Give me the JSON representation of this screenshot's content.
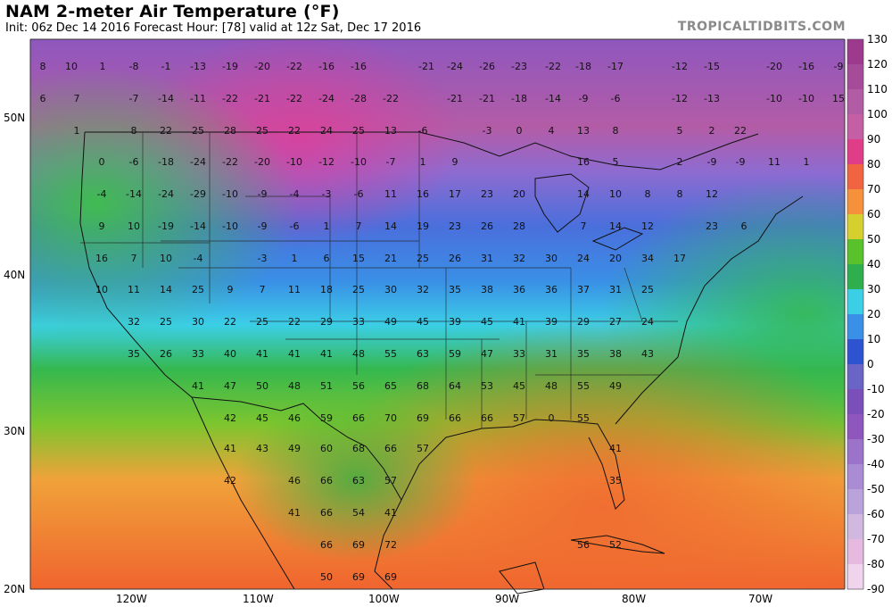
{
  "header": {
    "title": "NAM 2-meter Air Temperature (°F)",
    "subtitle": "Init: 06z Dec 14 2016   Forecast Hour: [78]   valid at 12z Sat, Dec 17 2016",
    "brand": "TROPICALTIDBITS.COM"
  },
  "map": {
    "lat_labels": [
      "50N",
      "40N",
      "30N",
      "20N"
    ],
    "lon_labels": [
      "120W",
      "110W",
      "100W",
      "90W",
      "80W",
      "70W"
    ]
  },
  "colorbar": {
    "unit": "°F",
    "ticks": [
      "130",
      "120",
      "110",
      "100",
      "90",
      "80",
      "70",
      "60",
      "50",
      "40",
      "30",
      "20",
      "10",
      "0",
      "-10",
      "-20",
      "-30",
      "-40",
      "-50",
      "-60",
      "-70",
      "-80",
      "-90"
    ],
    "colors": {
      "130": "#9e3a8e",
      "120": "#a64a9a",
      "110": "#b35ca6",
      "100": "#c45fa6",
      "90": "#e03c88",
      "80": "#f06442",
      "70": "#f5913a",
      "60": "#d6d02f",
      "50": "#58c12c",
      "40": "#2fae4e",
      "30": "#3bcfe6",
      "20": "#3a8fe6",
      "10": "#2e53d1",
      "0": "#6b64c7",
      "-10": "#7a4fb9",
      "-20": "#8f57be",
      "-30": "#9b74c9",
      "-40": "#a98cd3",
      "-50": "#b9a3da",
      "-60": "#d0b8df",
      "-70": "#e5b9e0",
      "-80": "#f0d4ee",
      "-90": "#fbeefa"
    }
  },
  "temperature_labels": [
    {
      "t": "8"
    },
    {
      "t": "10"
    },
    {
      "t": "1"
    },
    {
      "t": "-8"
    },
    {
      "t": "-1"
    },
    {
      "t": "-13"
    },
    {
      "t": "-19"
    },
    {
      "t": "-20"
    },
    {
      "t": "-22"
    },
    {
      "t": "-16"
    },
    {
      "t": "-16"
    },
    {
      "t": "-21"
    },
    {
      "t": "-24"
    },
    {
      "t": "-26"
    },
    {
      "t": "-23"
    },
    {
      "t": "-22"
    },
    {
      "t": "-18"
    },
    {
      "t": "-17"
    },
    {
      "t": "-12"
    },
    {
      "t": "-15"
    },
    {
      "t": "-20"
    },
    {
      "t": "-16"
    },
    {
      "t": "-9"
    },
    {
      "t": "6"
    },
    {
      "t": "7"
    },
    {
      "t": "-7"
    },
    {
      "t": "-14"
    },
    {
      "t": "-11"
    },
    {
      "t": "-22"
    },
    {
      "t": "-21"
    },
    {
      "t": "-22"
    },
    {
      "t": "-24"
    },
    {
      "t": "-28"
    },
    {
      "t": "-22"
    },
    {
      "t": "-21"
    },
    {
      "t": "-21"
    },
    {
      "t": "-18"
    },
    {
      "t": "-14"
    },
    {
      "t": "-9"
    },
    {
      "t": "-6"
    },
    {
      "t": "-12"
    },
    {
      "t": "-13"
    },
    {
      "t": "-10"
    },
    {
      "t": "-10"
    },
    {
      "t": "15"
    },
    {
      "t": "1"
    },
    {
      "t": "8"
    },
    {
      "t": "22"
    },
    {
      "t": "25"
    },
    {
      "t": "28"
    },
    {
      "t": "25"
    },
    {
      "t": "22"
    },
    {
      "t": "24"
    },
    {
      "t": "25"
    },
    {
      "t": "13"
    },
    {
      "t": "-6"
    },
    {
      "t": "-3"
    },
    {
      "t": "0"
    },
    {
      "t": "4"
    },
    {
      "t": "13"
    },
    {
      "t": "8"
    },
    {
      "t": "5"
    },
    {
      "t": "2"
    },
    {
      "t": "22"
    },
    {
      "t": "0"
    },
    {
      "t": "-6"
    },
    {
      "t": "-18"
    },
    {
      "t": "-24"
    },
    {
      "t": "-22"
    },
    {
      "t": "-20"
    },
    {
      "t": "-10"
    },
    {
      "t": "-12"
    },
    {
      "t": "-10"
    },
    {
      "t": "-7"
    },
    {
      "t": "1"
    },
    {
      "t": "9"
    },
    {
      "t": "16"
    },
    {
      "t": "5"
    },
    {
      "t": "2"
    },
    {
      "t": "-9"
    },
    {
      "t": "-9"
    },
    {
      "t": "11"
    },
    {
      "t": "1"
    },
    {
      "t": "-4"
    },
    {
      "t": "-14"
    },
    {
      "t": "-24"
    },
    {
      "t": "-29"
    },
    {
      "t": "-10"
    },
    {
      "t": "-9"
    },
    {
      "t": "-4"
    },
    {
      "t": "-3"
    },
    {
      "t": "-6"
    },
    {
      "t": "11"
    },
    {
      "t": "16"
    },
    {
      "t": "17"
    },
    {
      "t": "23"
    },
    {
      "t": "20"
    },
    {
      "t": "14"
    },
    {
      "t": "10"
    },
    {
      "t": "8"
    },
    {
      "t": "8"
    },
    {
      "t": "12"
    },
    {
      "t": "9"
    },
    {
      "t": "10"
    },
    {
      "t": "-19"
    },
    {
      "t": "-14"
    },
    {
      "t": "-10"
    },
    {
      "t": "-9"
    },
    {
      "t": "-6"
    },
    {
      "t": "1"
    },
    {
      "t": "7"
    },
    {
      "t": "14"
    },
    {
      "t": "19"
    },
    {
      "t": "23"
    },
    {
      "t": "26"
    },
    {
      "t": "28"
    },
    {
      "t": "7"
    },
    {
      "t": "14"
    },
    {
      "t": "12"
    },
    {
      "t": "23"
    },
    {
      "t": "6"
    },
    {
      "t": "16"
    },
    {
      "t": "7"
    },
    {
      "t": "10"
    },
    {
      "t": "-4"
    },
    {
      "t": "-3"
    },
    {
      "t": "1"
    },
    {
      "t": "6"
    },
    {
      "t": "15"
    },
    {
      "t": "21"
    },
    {
      "t": "25"
    },
    {
      "t": "26"
    },
    {
      "t": "31"
    },
    {
      "t": "32"
    },
    {
      "t": "30"
    },
    {
      "t": "24"
    },
    {
      "t": "20"
    },
    {
      "t": "34"
    },
    {
      "t": "17"
    },
    {
      "t": "10"
    },
    {
      "t": "11"
    },
    {
      "t": "14"
    },
    {
      "t": "25"
    },
    {
      "t": "9"
    },
    {
      "t": "7"
    },
    {
      "t": "11"
    },
    {
      "t": "18"
    },
    {
      "t": "25"
    },
    {
      "t": "30"
    },
    {
      "t": "32"
    },
    {
      "t": "35"
    },
    {
      "t": "38"
    },
    {
      "t": "36"
    },
    {
      "t": "36"
    },
    {
      "t": "37"
    },
    {
      "t": "31"
    },
    {
      "t": "25"
    },
    {
      "t": "32"
    },
    {
      "t": "25"
    },
    {
      "t": "30"
    },
    {
      "t": "22"
    },
    {
      "t": "25"
    },
    {
      "t": "22"
    },
    {
      "t": "29"
    },
    {
      "t": "33"
    },
    {
      "t": "49"
    },
    {
      "t": "45"
    },
    {
      "t": "39"
    },
    {
      "t": "45"
    },
    {
      "t": "41"
    },
    {
      "t": "39"
    },
    {
      "t": "29"
    },
    {
      "t": "27"
    },
    {
      "t": "24"
    },
    {
      "t": "35"
    },
    {
      "t": "26"
    },
    {
      "t": "33"
    },
    {
      "t": "40"
    },
    {
      "t": "41"
    },
    {
      "t": "41"
    },
    {
      "t": "41"
    },
    {
      "t": "48"
    },
    {
      "t": "55"
    },
    {
      "t": "63"
    },
    {
      "t": "59"
    },
    {
      "t": "47"
    },
    {
      "t": "33"
    },
    {
      "t": "31"
    },
    {
      "t": "35"
    },
    {
      "t": "38"
    },
    {
      "t": "43"
    },
    {
      "t": "41"
    },
    {
      "t": "47"
    },
    {
      "t": "50"
    },
    {
      "t": "48"
    },
    {
      "t": "51"
    },
    {
      "t": "56"
    },
    {
      "t": "65"
    },
    {
      "t": "68"
    },
    {
      "t": "64"
    },
    {
      "t": "53"
    },
    {
      "t": "45"
    },
    {
      "t": "48"
    },
    {
      "t": "55"
    },
    {
      "t": "49"
    },
    {
      "t": "42"
    },
    {
      "t": "45"
    },
    {
      "t": "46"
    },
    {
      "t": "59"
    },
    {
      "t": "66"
    },
    {
      "t": "70"
    },
    {
      "t": "69"
    },
    {
      "t": "66"
    },
    {
      "t": "66"
    },
    {
      "t": "57"
    },
    {
      "t": "0"
    },
    {
      "t": "55"
    },
    {
      "t": "41"
    },
    {
      "t": "43"
    },
    {
      "t": "49"
    },
    {
      "t": "60"
    },
    {
      "t": "68"
    },
    {
      "t": "66"
    },
    {
      "t": "57"
    },
    {
      "t": "41"
    },
    {
      "t": "42"
    },
    {
      "t": "46"
    },
    {
      "t": "66"
    },
    {
      "t": "63"
    },
    {
      "t": "57"
    },
    {
      "t": "35"
    },
    {
      "t": "41"
    },
    {
      "t": "66"
    },
    {
      "t": "54"
    },
    {
      "t": "41"
    },
    {
      "t": "66"
    },
    {
      "t": "69"
    },
    {
      "t": "72"
    },
    {
      "t": "56"
    },
    {
      "t": "52"
    },
    {
      "t": "50"
    },
    {
      "t": "69"
    },
    {
      "t": "69"
    }
  ]
}
